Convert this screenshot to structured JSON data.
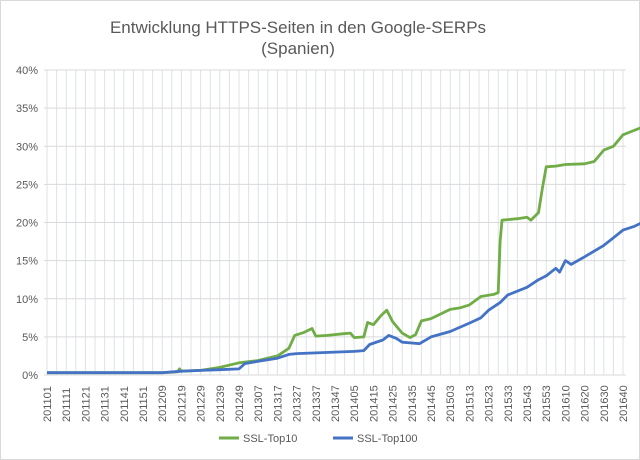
{
  "chart_data": {
    "type": "line",
    "title": "Entwicklung HTTPS-Seiten in den Google-SERPs",
    "subtitle": "(Spanien)",
    "xlabel": "",
    "ylabel": "",
    "ylim": [
      0,
      40
    ],
    "yticks": [
      "0%",
      "5%",
      "10%",
      "15%",
      "20%",
      "25%",
      "30%",
      "35%",
      "40%"
    ],
    "ytick_values": [
      0,
      5,
      10,
      15,
      20,
      25,
      30,
      35,
      40
    ],
    "categories": [
      "201101",
      "201111",
      "201121",
      "201131",
      "201141",
      "201151",
      "201209",
      "201219",
      "201229",
      "201239",
      "201249",
      "201307",
      "201317",
      "201327",
      "201337",
      "201347",
      "201405",
      "201415",
      "201425",
      "201435",
      "201445",
      "201503",
      "201513",
      "201523",
      "201533",
      "201543",
      "201553",
      "201610",
      "201620",
      "201630",
      "201640"
    ],
    "grid": "on",
    "legend_position": "bottom",
    "series": [
      {
        "name": "SSL-Top10",
        "color": "#70AD47",
        "points": [
          [
            0,
            0.3
          ],
          [
            6,
            0.3
          ],
          [
            6.8,
            0.4
          ],
          [
            6.9,
            0.8
          ],
          [
            7,
            0.5
          ],
          [
            8,
            0.6
          ],
          [
            9,
            1.0
          ],
          [
            10,
            1.6
          ],
          [
            11,
            1.9
          ],
          [
            12,
            2.5
          ],
          [
            12.6,
            3.5
          ],
          [
            12.9,
            5.2
          ],
          [
            13.4,
            5.6
          ],
          [
            13.8,
            6.1
          ],
          [
            14,
            5.1
          ],
          [
            14.6,
            5.2
          ],
          [
            15.4,
            5.4
          ],
          [
            15.8,
            5.5
          ],
          [
            16,
            4.9
          ],
          [
            16.5,
            5.0
          ],
          [
            16.7,
            6.9
          ],
          [
            17,
            6.6
          ],
          [
            17.4,
            7.8
          ],
          [
            17.7,
            8.5
          ],
          [
            18,
            7.0
          ],
          [
            18.5,
            5.5
          ],
          [
            18.9,
            4.9
          ],
          [
            19.2,
            5.3
          ],
          [
            19.5,
            7.1
          ],
          [
            20,
            7.4
          ],
          [
            21,
            8.6
          ],
          [
            21.5,
            8.8
          ],
          [
            22,
            9.2
          ],
          [
            22.6,
            10.3
          ],
          [
            23.3,
            10.6
          ],
          [
            23.5,
            10.8
          ],
          [
            23.6,
            17.5
          ],
          [
            23.7,
            20.3
          ],
          [
            24.5,
            20.5
          ],
          [
            25,
            20.7
          ],
          [
            25.2,
            20.3
          ],
          [
            25.6,
            21.3
          ],
          [
            25.8,
            24.5
          ],
          [
            26,
            27.3
          ],
          [
            26.5,
            27.4
          ],
          [
            27,
            27.6
          ],
          [
            28,
            27.7
          ],
          [
            28.5,
            28.0
          ],
          [
            29,
            29.5
          ],
          [
            29.5,
            30.0
          ],
          [
            30,
            31.5
          ],
          [
            30.5,
            32.0
          ],
          [
            31,
            32.5
          ],
          [
            31.3,
            32.8
          ],
          [
            31.6,
            33.6
          ],
          [
            32,
            34.3
          ]
        ]
      },
      {
        "name": "SSL-Top100",
        "color": "#4472C4",
        "points": [
          [
            0,
            0.3
          ],
          [
            6,
            0.3
          ],
          [
            7,
            0.5
          ],
          [
            8,
            0.6
          ],
          [
            9,
            0.7
          ],
          [
            10,
            0.8
          ],
          [
            10.3,
            1.5
          ],
          [
            11,
            1.8
          ],
          [
            12,
            2.2
          ],
          [
            12.6,
            2.7
          ],
          [
            13,
            2.8
          ],
          [
            14,
            2.9
          ],
          [
            15,
            3.0
          ],
          [
            16,
            3.1
          ],
          [
            16.5,
            3.2
          ],
          [
            16.8,
            4.0
          ],
          [
            17.5,
            4.6
          ],
          [
            17.8,
            5.2
          ],
          [
            18.2,
            4.8
          ],
          [
            18.5,
            4.3
          ],
          [
            19,
            4.2
          ],
          [
            19.4,
            4.1
          ],
          [
            20,
            5.0
          ],
          [
            21,
            5.7
          ],
          [
            22,
            6.8
          ],
          [
            22.6,
            7.5
          ],
          [
            23,
            8.5
          ],
          [
            23.6,
            9.5
          ],
          [
            24,
            10.5
          ],
          [
            25,
            11.5
          ],
          [
            25.6,
            12.5
          ],
          [
            26,
            13.0
          ],
          [
            26.5,
            14.0
          ],
          [
            26.7,
            13.5
          ],
          [
            27,
            15.0
          ],
          [
            27.3,
            14.5
          ],
          [
            28,
            15.5
          ],
          [
            29,
            17.0
          ],
          [
            29.5,
            18.0
          ],
          [
            30,
            19.0
          ],
          [
            30.6,
            19.5
          ],
          [
            31,
            20.0
          ],
          [
            31.3,
            20.5
          ],
          [
            31.6,
            22.0
          ],
          [
            32,
            22.8
          ]
        ]
      }
    ]
  }
}
